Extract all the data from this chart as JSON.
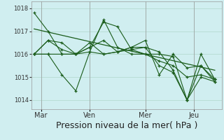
{
  "bg_color": "#d0eef0",
  "grid_color": "#b0d8cc",
  "line_color": "#1a5c1a",
  "xlabel": "Pression niveau de la mer( hPa )",
  "xlabel_fontsize": 9,
  "ylim": [
    1013.6,
    1018.3
  ],
  "yticks": [
    1014,
    1015,
    1016,
    1017,
    1018
  ],
  "ytick_fontsize": 6,
  "xtick_labels": [
    "Mar",
    "Ven",
    "Mer",
    "Jeu"
  ],
  "xtick_positions": [
    0.5,
    4.0,
    8.0,
    11.5
  ],
  "xtick_fontsize": 7,
  "series": [
    [
      1017.8,
      1017.0,
      1016.0,
      1016.0,
      1016.1,
      1016.0,
      1016.1,
      1016.3,
      1016.6,
      1015.1,
      1016.0,
      1015.4,
      1015.5,
      1014.9
    ],
    [
      1016.0,
      1016.6,
      1016.2,
      1016.0,
      1016.3,
      1017.4,
      1017.2,
      1016.2,
      1016.3,
      1016.1,
      1015.3,
      1014.0,
      1015.5,
      1014.8
    ],
    [
      1016.0,
      1016.0,
      1015.1,
      1014.4,
      1016.1,
      1017.5,
      1016.3,
      1016.0,
      1016.0,
      1016.0,
      1015.9,
      1014.0,
      1016.0,
      1014.9
    ],
    [
      1016.0,
      1016.6,
      1016.5,
      1016.0,
      1016.3,
      1016.6,
      1016.1,
      1016.3,
      1016.3,
      1015.5,
      1015.2,
      1014.0,
      1015.0,
      1014.8
    ],
    [
      1016.0,
      1016.0,
      1016.0,
      1016.0,
      1016.5,
      1016.0,
      1016.1,
      1016.2,
      1016.0,
      1015.7,
      1015.5,
      1015.0,
      1015.1,
      1014.9
    ]
  ],
  "trend_x": [
    0,
    13
  ],
  "trend_y": [
    1017.1,
    1015.3
  ],
  "vlines": [
    0.5,
    4.0,
    8.0,
    11.5
  ],
  "xlim": [
    -0.2,
    13.5
  ]
}
